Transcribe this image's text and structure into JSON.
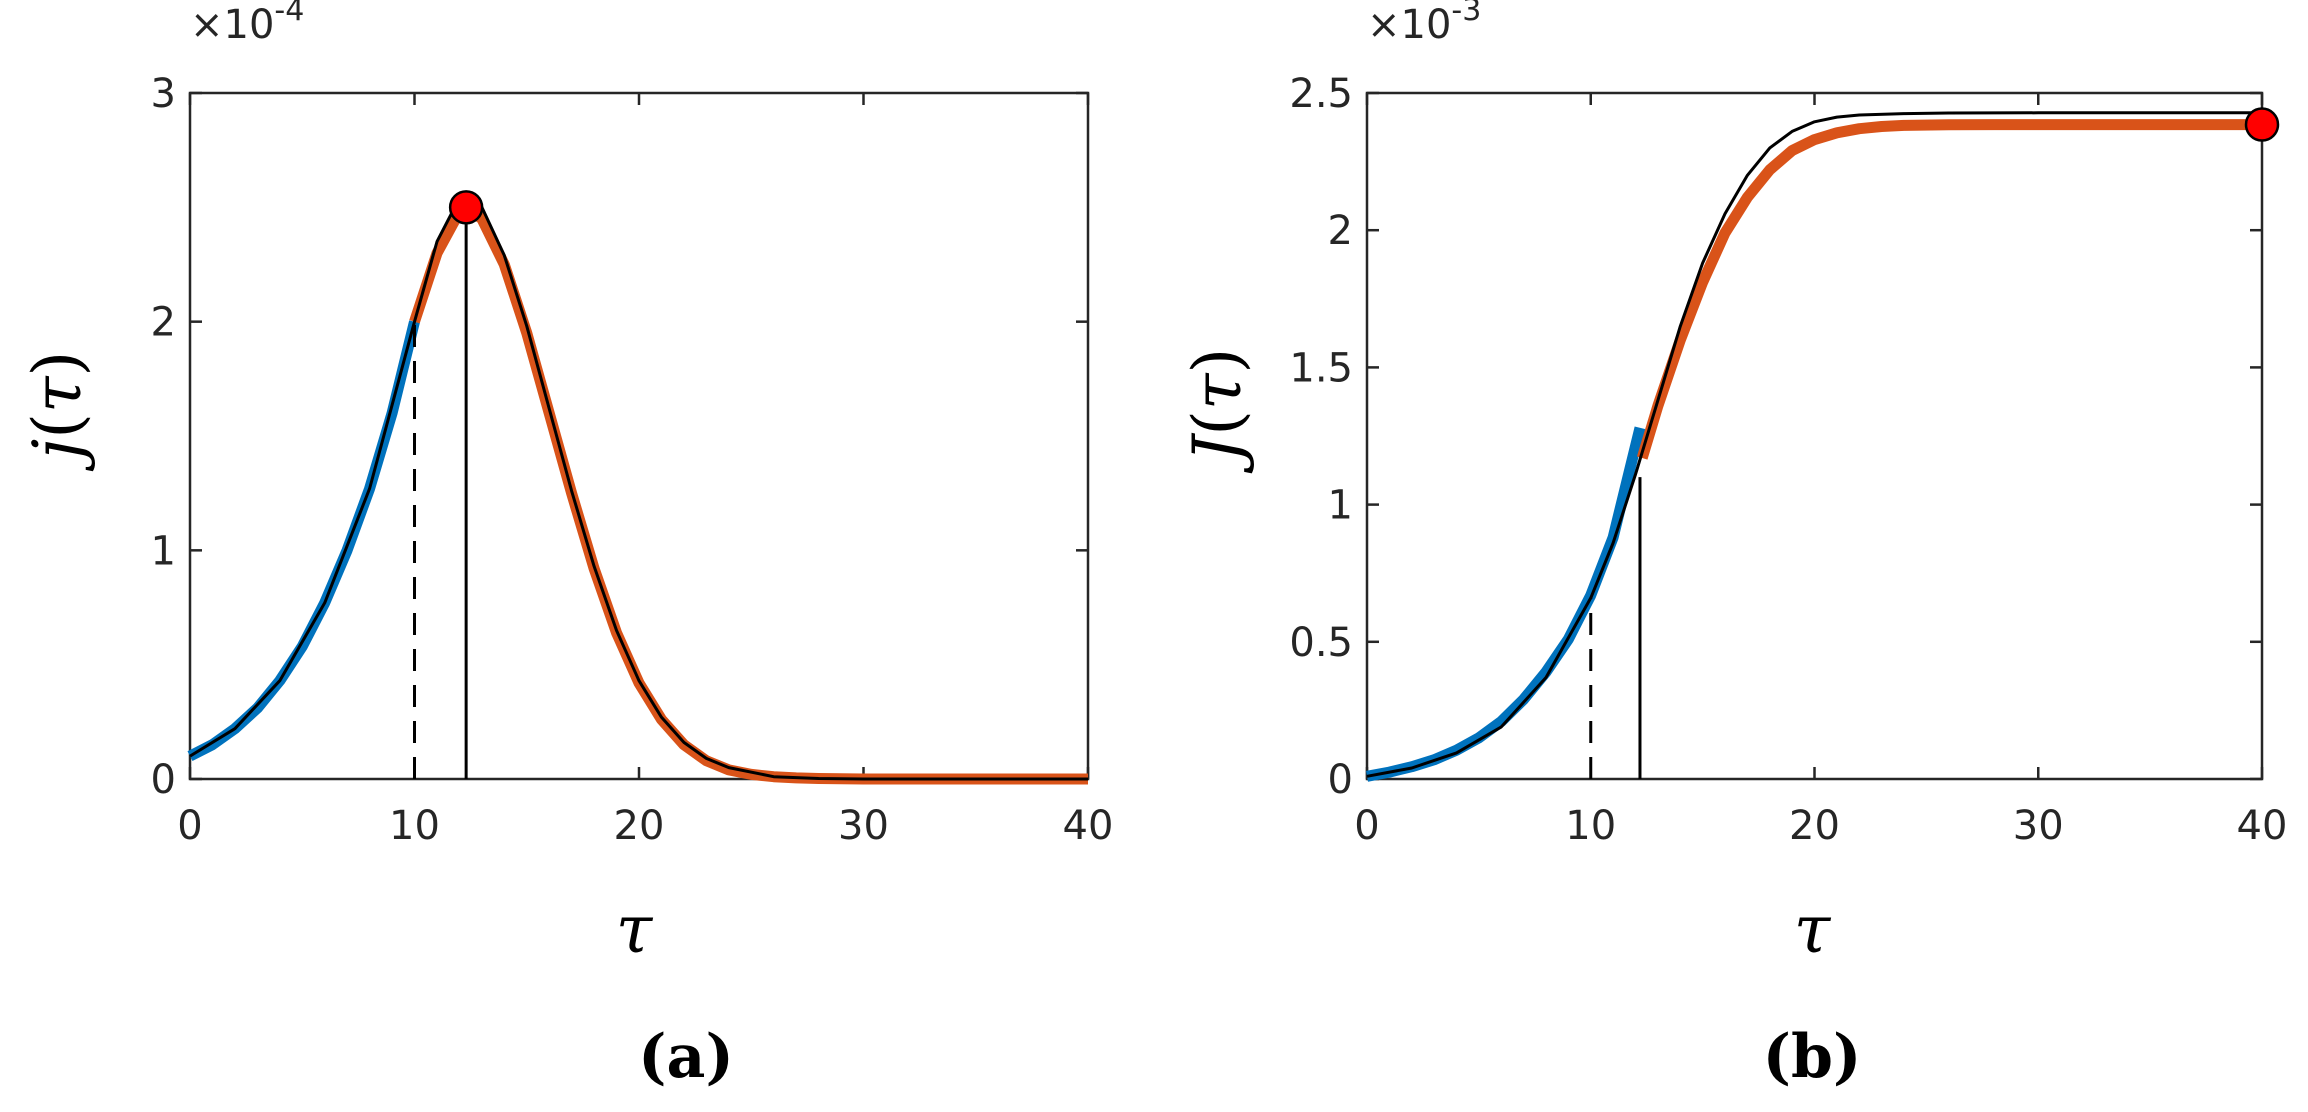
{
  "chart_data": [
    {
      "panel": "(a)",
      "type": "line",
      "xlabel": "τ",
      "ylabel_var": "j",
      "ylabel_arg": "τ",
      "xlim": [
        0,
        40
      ],
      "ylim": [
        0,
        0.0003
      ],
      "y_exponent": "×10",
      "y_exponent_power": "-4",
      "xticks": [
        0,
        10,
        20,
        30,
        40
      ],
      "xtick_labels": [
        "0",
        "10",
        "20",
        "30",
        "40"
      ],
      "yticks": [
        0,
        0.0001,
        0.0002,
        0.0003
      ],
      "ytick_labels": [
        "0",
        "1",
        "2",
        "3"
      ],
      "grid": false,
      "series": [
        {
          "color": "#0072BD",
          "x": [
            0,
            1,
            2,
            3,
            4,
            5,
            6,
            7,
            8,
            9,
            10
          ],
          "y": [
            1e-05,
            1.5e-05,
            2.2e-05,
            3.1e-05,
            4.3e-05,
            5.8e-05,
            7.7e-05,
            0.0001,
            0.000127,
            0.00016,
            0.0002
          ]
        },
        {
          "color": "#D95319",
          "x": [
            10,
            11,
            12,
            12.3,
            13,
            14,
            15,
            16,
            17,
            18,
            19,
            20,
            21,
            22,
            23,
            24,
            25,
            26,
            27,
            28,
            30,
            32,
            35,
            40
          ],
          "y": [
            0.0002,
            0.00023,
            0.000248,
            0.00025,
            0.000245,
            0.000225,
            0.000195,
            0.00016,
            0.000125,
            9.2e-05,
            6.4e-05,
            4.2e-05,
            2.6e-05,
            1.5e-05,
            8e-06,
            4e-06,
            2e-06,
            1e-06,
            5e-07,
            2e-07,
            0,
            0,
            0,
            0
          ]
        },
        {
          "color": "#000000",
          "x": [
            0,
            2,
            4,
            6,
            8,
            10,
            11,
            12,
            12.3,
            13,
            14,
            15,
            16,
            17,
            18,
            19,
            20,
            21,
            22,
            23,
            24,
            26,
            28,
            30,
            35,
            40
          ],
          "y": [
            1e-05,
            2.2e-05,
            4.3e-05,
            7.7e-05,
            0.000127,
            0.0002,
            0.000235,
            0.000254,
            0.000255,
            0.00025,
            0.000229,
            0.000198,
            0.000162,
            0.000126,
            9.3e-05,
            6.5e-05,
            4.3e-05,
            2.7e-05,
            1.6e-05,
            9e-06,
            5e-06,
            1e-06,
            2e-07,
            0,
            0,
            0
          ]
        }
      ],
      "vlines": [
        {
          "x": 10,
          "y_top": 0.0002,
          "style": "dashed"
        },
        {
          "x": 12.3,
          "y_top": 0.000252,
          "style": "solid"
        }
      ],
      "marker": {
        "x": 12.3,
        "y": 0.00025,
        "color": "#FF0000"
      }
    },
    {
      "panel": "(b)",
      "type": "line",
      "xlabel": "τ",
      "ylabel_var": "J",
      "ylabel_arg": "τ",
      "xlim": [
        0,
        40
      ],
      "ylim": [
        0,
        0.0025
      ],
      "y_exponent": "×10",
      "y_exponent_power": "-3",
      "xticks": [
        0,
        10,
        20,
        30,
        40
      ],
      "xtick_labels": [
        "0",
        "10",
        "20",
        "30",
        "40"
      ],
      "yticks": [
        0,
        0.0005,
        0.001,
        0.0015,
        0.002,
        0.0025
      ],
      "ytick_labels": [
        "0",
        "0.5",
        "1",
        "1.5",
        "2",
        "2.5"
      ],
      "grid": false,
      "series": [
        {
          "color": "#0072BD",
          "x": [
            0,
            1,
            2,
            3,
            4,
            5,
            6,
            7,
            8,
            9,
            10,
            11,
            12.2
          ],
          "y": [
            1e-05,
            2.5e-05,
            4.5e-05,
            7e-05,
            0.000105,
            0.00015,
            0.00021,
            0.00029,
            0.00039,
            0.00051,
            0.00067,
            0.00088,
            0.00128
          ]
        },
        {
          "color": "#D95319",
          "x": [
            12.3,
            13,
            14,
            15,
            16,
            17,
            18,
            19,
            20,
            21,
            22,
            23,
            24,
            26,
            28,
            30,
            35,
            40
          ],
          "y": [
            0.00117,
            0.00136,
            0.0016,
            0.00181,
            0.00199,
            0.00212,
            0.00222,
            0.00229,
            0.00233,
            0.002355,
            0.00237,
            0.002378,
            0.002382,
            0.002384,
            0.002385,
            0.002385,
            0.002385,
            0.002385
          ]
        },
        {
          "color": "#000000",
          "x": [
            0,
            2,
            4,
            6,
            8,
            10,
            11,
            12,
            13,
            14,
            15,
            16,
            17,
            18,
            19,
            20,
            21,
            22,
            24,
            26,
            30,
            35,
            40
          ],
          "y": [
            1e-05,
            4e-05,
            9.5e-05,
            0.00019,
            0.00037,
            0.00066,
            0.00086,
            0.00111,
            0.00138,
            0.00165,
            0.00188,
            0.00206,
            0.0022,
            0.0023,
            0.00236,
            0.002395,
            0.002412,
            0.00242,
            0.002425,
            0.002427,
            0.002428,
            0.002428,
            0.002428
          ]
        }
      ],
      "vlines": [
        {
          "x": 10,
          "y_top": 0.00066,
          "style": "dashed"
        },
        {
          "x": 12.2,
          "y_top": 0.0011,
          "style": "solid"
        }
      ],
      "marker": {
        "x": 40,
        "y": 0.002385,
        "color": "#FF0000"
      }
    }
  ]
}
